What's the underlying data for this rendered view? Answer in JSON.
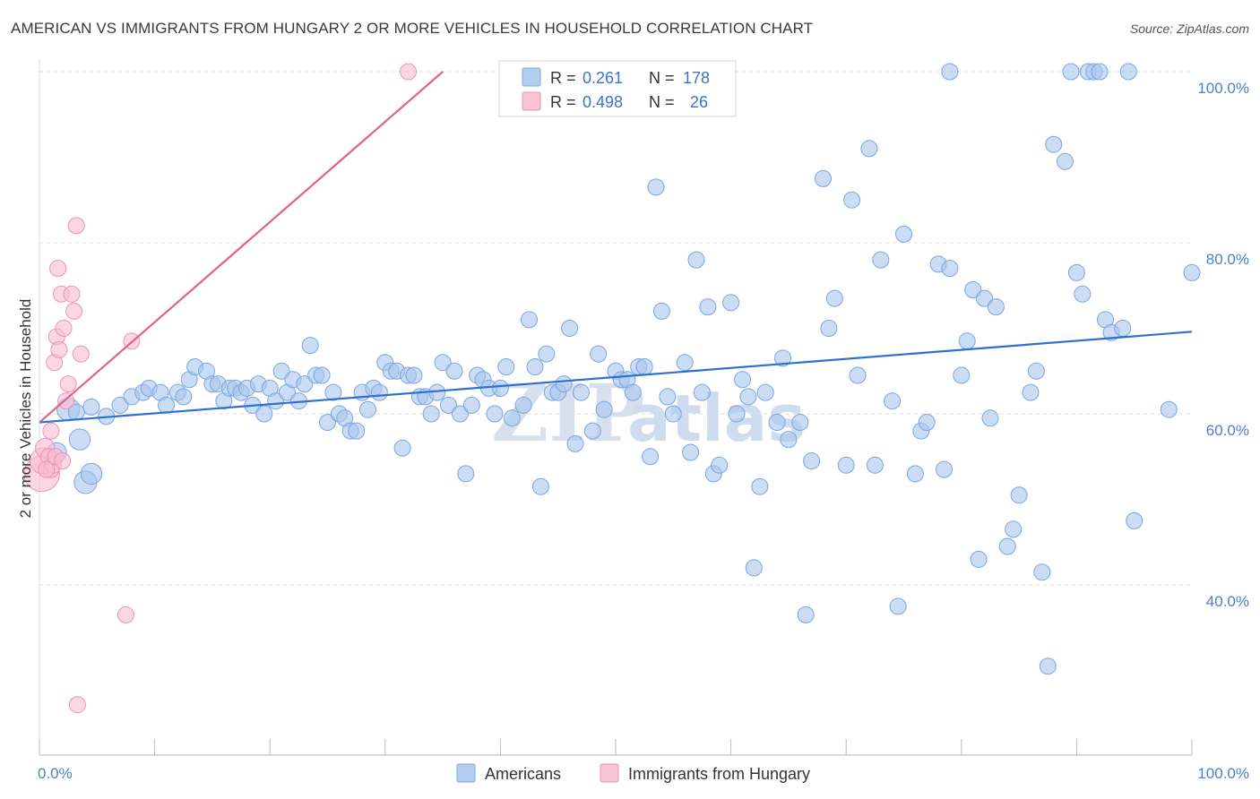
{
  "header": {
    "title": "AMERICAN VS IMMIGRANTS FROM HUNGARY 2 OR MORE VEHICLES IN HOUSEHOLD CORRELATION CHART",
    "source": "Source: ZipAtlas.com"
  },
  "chart_data": {
    "type": "scatter",
    "title": "AMERICAN VS IMMIGRANTS FROM HUNGARY 2 OR MORE VEHICLES IN HOUSEHOLD CORRELATION CHART",
    "xlabel": "",
    "ylabel": "2 or more Vehicles in Household",
    "xlim": [
      0,
      100
    ],
    "ylim": [
      20,
      102
    ],
    "x_tick_labels": [
      "0.0%",
      "100.0%"
    ],
    "y_ticks": [
      40,
      60,
      80,
      100
    ],
    "y_tick_labels": [
      "40.0%",
      "60.0%",
      "80.0%",
      "100.0%"
    ],
    "grid": true,
    "legend_position": "top-center",
    "watermark": "ZIPatlas",
    "colors": {
      "americans": "#a9c7ef",
      "americans_edge": "#7ba6e0",
      "americans_line": "#2f6fce",
      "hungary": "#f7bcd0",
      "hungary_edge": "#ee93b2",
      "hungary_line": "#e0628e",
      "tick": "#4a7fd0"
    },
    "stats": [
      {
        "r_label": "R =",
        "r_value": "0.261",
        "n_label": "N =",
        "n_value": "178"
      },
      {
        "r_label": "R =",
        "r_value": "0.498",
        "n_label": "N =",
        "n_value": "26"
      }
    ],
    "series": [
      {
        "name": "Americans",
        "trend": {
          "x": [
            0,
            100
          ],
          "y": [
            59,
            69.6
          ]
        },
        "points": [
          [
            2.5,
            60.5,
            1.4
          ],
          [
            3.2,
            60.2,
            1
          ],
          [
            4.5,
            60.8,
            1
          ],
          [
            5.8,
            59.7,
            1
          ],
          [
            1.5,
            55.5,
            1.2
          ],
          [
            3.5,
            57,
            1.3
          ],
          [
            4,
            52,
            1.4
          ],
          [
            4.5,
            53,
            1.3
          ],
          [
            7,
            61,
            1
          ],
          [
            8,
            62,
            1
          ],
          [
            9,
            62.5,
            1
          ],
          [
            9.5,
            63,
            1
          ],
          [
            10.5,
            62.5,
            1
          ],
          [
            11,
            61,
            1
          ],
          [
            12,
            62.5,
            1
          ],
          [
            12.5,
            62,
            1
          ],
          [
            13,
            64,
            1
          ],
          [
            13.5,
            65.5,
            1
          ],
          [
            14.5,
            65,
            1
          ],
          [
            15,
            63.5,
            1
          ],
          [
            15.5,
            63.5,
            1
          ],
          [
            16,
            61.5,
            1
          ],
          [
            16.5,
            63,
            1
          ],
          [
            17,
            63,
            1
          ],
          [
            17.5,
            62.5,
            1
          ],
          [
            18,
            63,
            1
          ],
          [
            18.5,
            61,
            1
          ],
          [
            19,
            63.5,
            1
          ],
          [
            19.5,
            60,
            1
          ],
          [
            20,
            63,
            1
          ],
          [
            20.5,
            61.5,
            1
          ],
          [
            21,
            65,
            1
          ],
          [
            21.5,
            62.5,
            1
          ],
          [
            22,
            64,
            1
          ],
          [
            22.5,
            61.5,
            1
          ],
          [
            23,
            63.5,
            1
          ],
          [
            23.5,
            68,
            1
          ],
          [
            24,
            64.5,
            1
          ],
          [
            24.5,
            64.5,
            1
          ],
          [
            25,
            59,
            1
          ],
          [
            25.5,
            62.5,
            1
          ],
          [
            26,
            60,
            1
          ],
          [
            26.5,
            59.5,
            1
          ],
          [
            27,
            58,
            1
          ],
          [
            27.5,
            58,
            1
          ],
          [
            28,
            62.5,
            1
          ],
          [
            28.5,
            60.5,
            1
          ],
          [
            29,
            63,
            1
          ],
          [
            29.5,
            62.5,
            1
          ],
          [
            30,
            66,
            1
          ],
          [
            30.5,
            65,
            1
          ],
          [
            31,
            65,
            1
          ],
          [
            31.5,
            56,
            1
          ],
          [
            32,
            64.5,
            1
          ],
          [
            32.5,
            64.5,
            1
          ],
          [
            33,
            62,
            1
          ],
          [
            33.5,
            62,
            1
          ],
          [
            34,
            60,
            1
          ],
          [
            34.5,
            62.5,
            1
          ],
          [
            35,
            66,
            1
          ],
          [
            35.5,
            61,
            1
          ],
          [
            36,
            65,
            1
          ],
          [
            36.5,
            60,
            1
          ],
          [
            37,
            53,
            1
          ],
          [
            37.5,
            61,
            1
          ],
          [
            38,
            64.5,
            1
          ],
          [
            38.5,
            64,
            1
          ],
          [
            39,
            63,
            1
          ],
          [
            39.5,
            60,
            1
          ],
          [
            40,
            63,
            1
          ],
          [
            40.5,
            65.5,
            1
          ],
          [
            41,
            59.5,
            1
          ],
          [
            42,
            61,
            1
          ],
          [
            42.5,
            71,
            1
          ],
          [
            43,
            65.5,
            1
          ],
          [
            43.5,
            51.5,
            1
          ],
          [
            44,
            67,
            1
          ],
          [
            44.5,
            62.5,
            1
          ],
          [
            45,
            62.5,
            1
          ],
          [
            45.5,
            63.5,
            1
          ],
          [
            46,
            70,
            1
          ],
          [
            46.5,
            56.5,
            1
          ],
          [
            47,
            62.5,
            1
          ],
          [
            48,
            58,
            1
          ],
          [
            48.5,
            67,
            1
          ],
          [
            49,
            60.5,
            1
          ],
          [
            50,
            65,
            1
          ],
          [
            50.5,
            64,
            1
          ],
          [
            51,
            64,
            1
          ],
          [
            51.5,
            62.5,
            1
          ],
          [
            52,
            65.5,
            1
          ],
          [
            52.5,
            65.5,
            1
          ],
          [
            53,
            55,
            1
          ],
          [
            53.5,
            86.5,
            1
          ],
          [
            54,
            72,
            1
          ],
          [
            54.5,
            62,
            1
          ],
          [
            55,
            60,
            1
          ],
          [
            56,
            66,
            1
          ],
          [
            56.5,
            55.5,
            1
          ],
          [
            57,
            78,
            1
          ],
          [
            57.5,
            62.5,
            1
          ],
          [
            58,
            72.5,
            1
          ],
          [
            58.5,
            53,
            1
          ],
          [
            59,
            54,
            1
          ],
          [
            60,
            73,
            1
          ],
          [
            60.5,
            60,
            1
          ],
          [
            61,
            64,
            1
          ],
          [
            61.5,
            62,
            1
          ],
          [
            62,
            42,
            1
          ],
          [
            62.5,
            51.5,
            1
          ],
          [
            63,
            62.5,
            1
          ],
          [
            64,
            59,
            1
          ],
          [
            64.5,
            66.5,
            1
          ],
          [
            65,
            57,
            1
          ],
          [
            66,
            59,
            1
          ],
          [
            66.5,
            36.5,
            1
          ],
          [
            67,
            54.5,
            1
          ],
          [
            68,
            87.5,
            1
          ],
          [
            68.5,
            70,
            1
          ],
          [
            69,
            73.5,
            1
          ],
          [
            70,
            54,
            1
          ],
          [
            70.5,
            85,
            1
          ],
          [
            71,
            64.5,
            1
          ],
          [
            72,
            91,
            1
          ],
          [
            72.5,
            54,
            1
          ],
          [
            73,
            78,
            1
          ],
          [
            74,
            61.5,
            1
          ],
          [
            74.5,
            37.5,
            1
          ],
          [
            75,
            81,
            1
          ],
          [
            76,
            53,
            1
          ],
          [
            76.5,
            58,
            1
          ],
          [
            77,
            59,
            1
          ],
          [
            78,
            77.5,
            1
          ],
          [
            78.5,
            53.5,
            1
          ],
          [
            79,
            77,
            1
          ],
          [
            80,
            64.5,
            1
          ],
          [
            80.5,
            68.5,
            1
          ],
          [
            81,
            74.5,
            1
          ],
          [
            81.5,
            43,
            1
          ],
          [
            82,
            73.5,
            1
          ],
          [
            82.5,
            59.5,
            1
          ],
          [
            83,
            72.5,
            1
          ],
          [
            84,
            44.5,
            1
          ],
          [
            84.5,
            46.5,
            1
          ],
          [
            85,
            50.5,
            1
          ],
          [
            86,
            62.5,
            1
          ],
          [
            86.5,
            65,
            1
          ],
          [
            87,
            41.5,
            1
          ],
          [
            87.5,
            30.5,
            1
          ],
          [
            88,
            91.5,
            1
          ],
          [
            89,
            89.5,
            1
          ],
          [
            89.5,
            100,
            1
          ],
          [
            90,
            76.5,
            1
          ],
          [
            90.5,
            74,
            1
          ],
          [
            91,
            100,
            1
          ],
          [
            91.5,
            100,
            1
          ],
          [
            92,
            100,
            1
          ],
          [
            92.5,
            71,
            1
          ],
          [
            93,
            69.5,
            1
          ],
          [
            94,
            70,
            1
          ],
          [
            94.5,
            100,
            1
          ],
          [
            95,
            47.5,
            1
          ],
          [
            98,
            60.5,
            1
          ],
          [
            100,
            76.5,
            1
          ],
          [
            79,
            100,
            1
          ]
        ]
      },
      {
        "name": "Immigrants from Hungary",
        "trend": {
          "x": [
            0,
            35
          ],
          "y": [
            59,
            100
          ]
        },
        "points": [
          [
            0.2,
            53,
            2.2
          ],
          [
            0.3,
            54.5,
            1.6
          ],
          [
            0.5,
            56,
            1.2
          ],
          [
            0.8,
            55,
            1
          ],
          [
            1,
            53.5,
            1
          ],
          [
            1.2,
            54,
            1
          ],
          [
            1.4,
            55,
            1
          ],
          [
            1,
            58,
            1
          ],
          [
            1.3,
            66,
            1
          ],
          [
            1.5,
            69,
            1
          ],
          [
            1.6,
            77,
            1
          ],
          [
            1.7,
            67.5,
            1
          ],
          [
            1.9,
            74,
            1
          ],
          [
            2.1,
            70,
            1
          ],
          [
            2.3,
            61.5,
            1
          ],
          [
            2.5,
            63.5,
            1
          ],
          [
            2.8,
            74,
            1
          ],
          [
            3,
            72,
            1
          ],
          [
            3.2,
            82,
            1
          ],
          [
            3.6,
            67,
            1
          ],
          [
            7.5,
            36.5,
            1
          ],
          [
            8,
            68.5,
            1
          ],
          [
            3.3,
            26,
            1
          ],
          [
            32,
            100,
            1
          ],
          [
            2,
            54.5,
            1
          ],
          [
            0.6,
            53.5,
            1
          ]
        ]
      }
    ]
  }
}
